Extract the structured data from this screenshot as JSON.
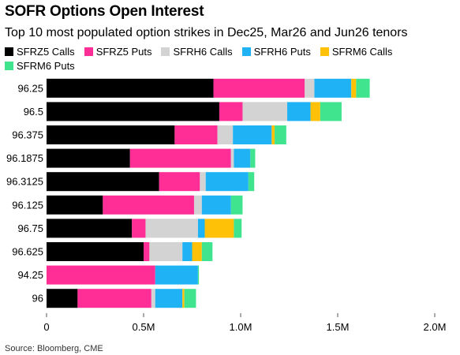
{
  "header": {
    "title": "SOFR Options Open Interest",
    "subtitle": "Top 10 most populated option strikes in Dec25, Mar26 and Jun26 tenors"
  },
  "source": "Source: Bloomberg, CME",
  "chart_data": {
    "type": "bar",
    "orientation": "horizontal",
    "stacked": true,
    "title": "SOFR Options Open Interest",
    "subtitle": "Top 10 most populated option strikes in Dec25, Mar26 and Jun26 tenors",
    "categories": [
      "96.25",
      "96.5",
      "96.375",
      "96.1875",
      "96.3125",
      "96.125",
      "96.75",
      "96.625",
      "94.25",
      "96"
    ],
    "series": [
      {
        "name": "SFRZ5 Calls",
        "color": "#000000",
        "values": [
          860000,
          890000,
          660000,
          430000,
          580000,
          290000,
          440000,
          500000,
          0,
          160000
        ]
      },
      {
        "name": "SFRZ5 Puts",
        "color": "#ff2d96",
        "values": [
          470000,
          120000,
          220000,
          520000,
          210000,
          470000,
          70000,
          30000,
          560000,
          380000
        ]
      },
      {
        "name": "SFRH6 Calls",
        "color": "#d3d3d3",
        "values": [
          50000,
          230000,
          80000,
          15000,
          30000,
          40000,
          270000,
          170000,
          0,
          20000
        ]
      },
      {
        "name": "SFRH6 Puts",
        "color": "#1fb3f5",
        "values": [
          190000,
          120000,
          200000,
          85000,
          220000,
          150000,
          35000,
          50000,
          220000,
          140000
        ]
      },
      {
        "name": "SFRM6 Calls",
        "color": "#ffc107",
        "values": [
          25000,
          50000,
          15000,
          0,
          0,
          0,
          150000,
          50000,
          0,
          10000
        ]
      },
      {
        "name": "SFRM6 Puts",
        "color": "#40e48e",
        "values": [
          70000,
          110000,
          60000,
          25000,
          30000,
          60000,
          40000,
          55000,
          5000,
          60000
        ]
      }
    ],
    "xlim": [
      0,
      2000000
    ],
    "xticks": [
      0,
      500000,
      1000000,
      1500000,
      2000000
    ],
    "xtick_labels": [
      "0",
      "0.5M",
      "1.0M",
      "1.5M",
      "2.0M"
    ],
    "grid": false,
    "legend_position": "top-left"
  }
}
